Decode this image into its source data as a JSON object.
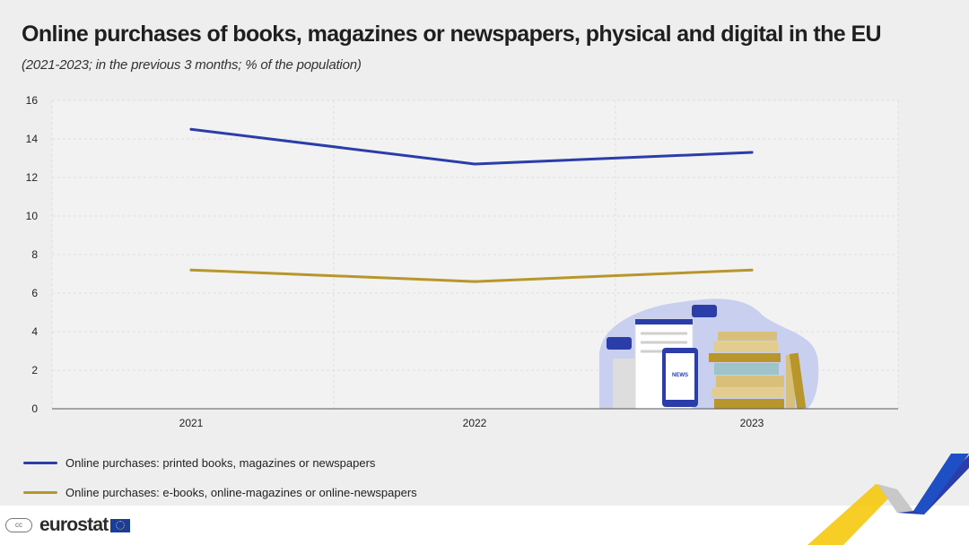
{
  "header": {
    "title": "Online purchases of books, magazines or newspapers, physical and digital in the EU",
    "subtitle": "(2021-2023; in the previous 3 months; % of the population)"
  },
  "chart_data": {
    "type": "line",
    "x": [
      "2021",
      "2022",
      "2023"
    ],
    "series": [
      {
        "name": "Online purchases: printed books, magazines or newspapers",
        "values": [
          14.5,
          12.7,
          13.3
        ],
        "color": "#2a3da8"
      },
      {
        "name": "Online purchases: e-books, online-magazines or online-newspapers",
        "values": [
          7.2,
          6.6,
          7.2
        ],
        "color": "#b8962b"
      }
    ],
    "ylim": [
      0,
      16
    ],
    "yticks": [
      "0",
      "2",
      "4",
      "6",
      "8",
      "10",
      "12",
      "14",
      "16"
    ],
    "grid": true,
    "legend_position": "bottom-left"
  },
  "footer": {
    "logo_text": "eurostat",
    "license": "cc"
  },
  "colors": {
    "background": "#eeeeee",
    "plot_background": "#f2f2f2",
    "accent_blue": "#2a3da8",
    "accent_gold": "#b8962b",
    "accent_yellow": "#f4c500"
  },
  "illustration": {
    "news_label": "NEWS"
  }
}
